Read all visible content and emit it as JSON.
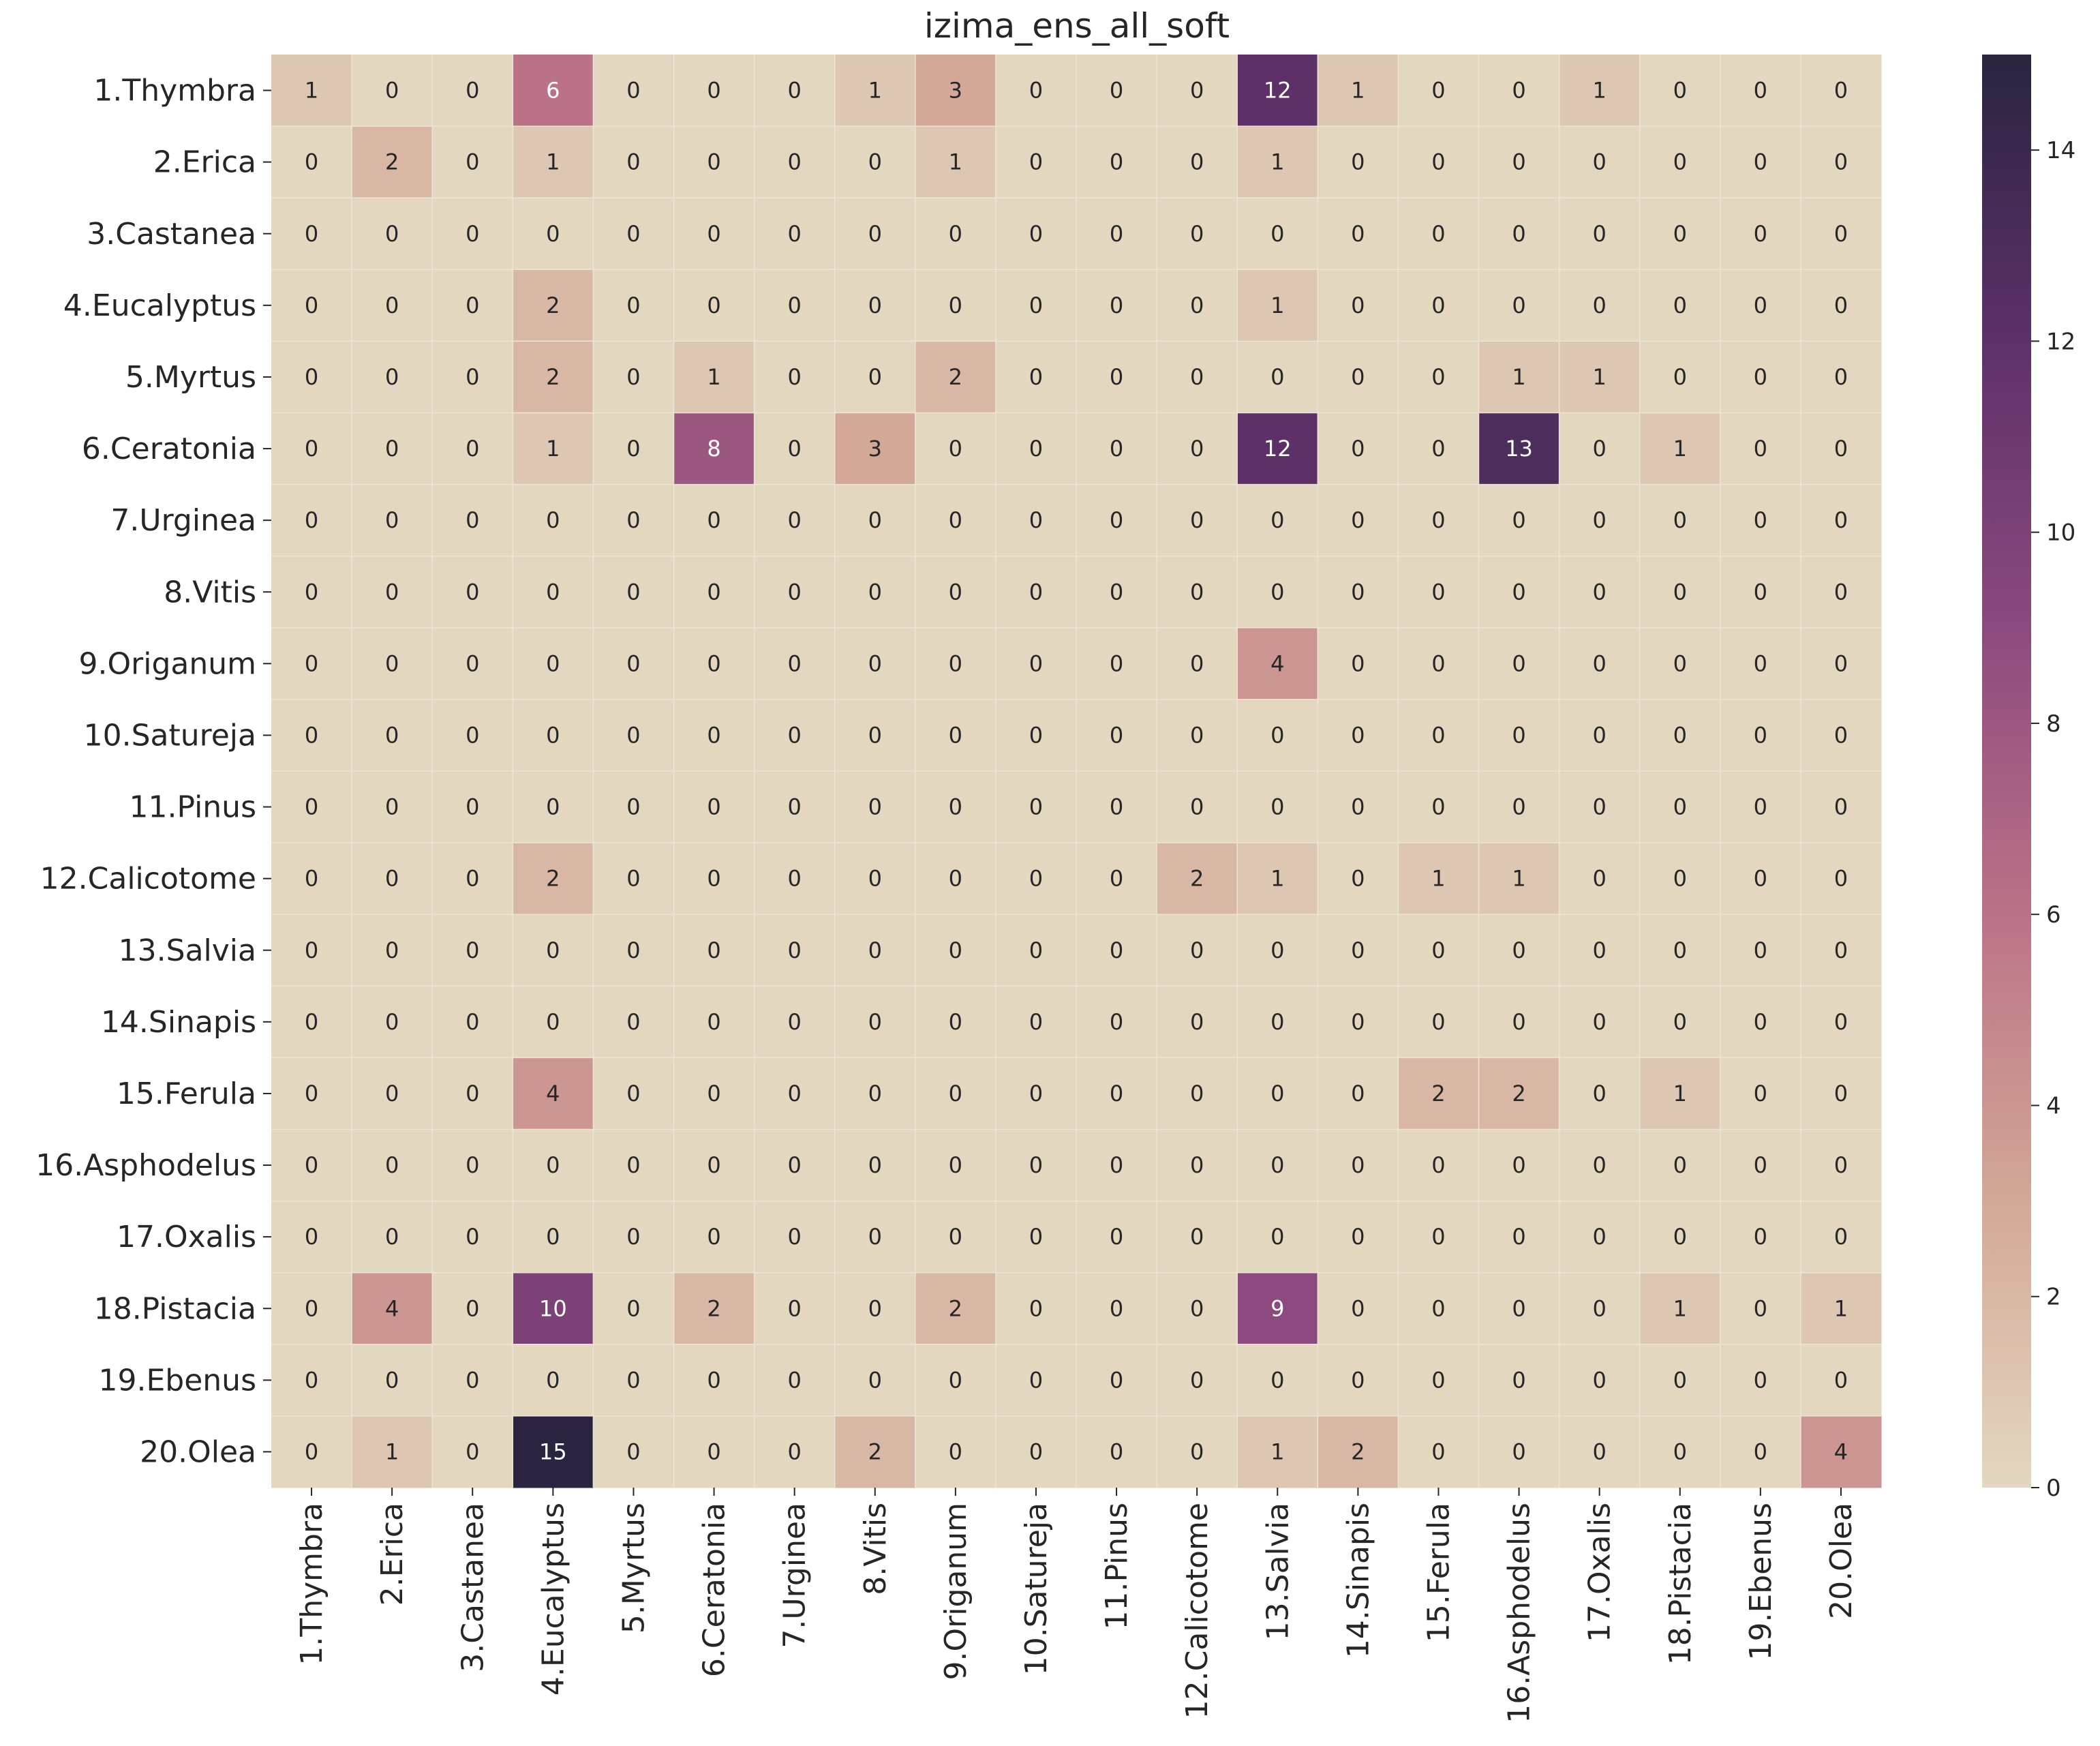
{
  "chart_data": {
    "type": "heatmap",
    "title": "izima_ens_all_soft",
    "xlabel": "",
    "ylabel": "",
    "row_labels": [
      "1.Thymbra",
      "2.Erica",
      "3.Castanea",
      "4.Eucalyptus",
      "5.Myrtus",
      "6.Ceratonia",
      "7.Urginea",
      "8.Vitis",
      "9.Origanum",
      "10.Satureja",
      "11.Pinus",
      "12.Calicotome",
      "13.Salvia",
      "14.Sinapis",
      "15.Ferula",
      "16.Asphodelus",
      "17.Oxalis",
      "18.Pistacia",
      "19.Ebenus",
      "20.Olea"
    ],
    "col_labels": [
      "1.Thymbra",
      "2.Erica",
      "3.Castanea",
      "4.Eucalyptus",
      "5.Myrtus",
      "6.Ceratonia",
      "7.Urginea",
      "8.Vitis",
      "9.Origanum",
      "10.Satureja",
      "11.Pinus",
      "12.Calicotome",
      "13.Salvia",
      "14.Sinapis",
      "15.Ferula",
      "16.Asphodelus",
      "17.Oxalis",
      "18.Pistacia",
      "19.Ebenus",
      "20.Olea"
    ],
    "values": [
      [
        1,
        0,
        0,
        6,
        0,
        0,
        0,
        1,
        3,
        0,
        0,
        0,
        12,
        1,
        0,
        0,
        1,
        0,
        0,
        0
      ],
      [
        0,
        2,
        0,
        1,
        0,
        0,
        0,
        0,
        1,
        0,
        0,
        0,
        1,
        0,
        0,
        0,
        0,
        0,
        0,
        0
      ],
      [
        0,
        0,
        0,
        0,
        0,
        0,
        0,
        0,
        0,
        0,
        0,
        0,
        0,
        0,
        0,
        0,
        0,
        0,
        0,
        0
      ],
      [
        0,
        0,
        0,
        2,
        0,
        0,
        0,
        0,
        0,
        0,
        0,
        0,
        1,
        0,
        0,
        0,
        0,
        0,
        0,
        0
      ],
      [
        0,
        0,
        0,
        2,
        0,
        1,
        0,
        0,
        2,
        0,
        0,
        0,
        0,
        0,
        0,
        1,
        1,
        0,
        0,
        0
      ],
      [
        0,
        0,
        0,
        1,
        0,
        8,
        0,
        3,
        0,
        0,
        0,
        0,
        12,
        0,
        0,
        13,
        0,
        1,
        0,
        0
      ],
      [
        0,
        0,
        0,
        0,
        0,
        0,
        0,
        0,
        0,
        0,
        0,
        0,
        0,
        0,
        0,
        0,
        0,
        0,
        0,
        0
      ],
      [
        0,
        0,
        0,
        0,
        0,
        0,
        0,
        0,
        0,
        0,
        0,
        0,
        0,
        0,
        0,
        0,
        0,
        0,
        0,
        0
      ],
      [
        0,
        0,
        0,
        0,
        0,
        0,
        0,
        0,
        0,
        0,
        0,
        0,
        4,
        0,
        0,
        0,
        0,
        0,
        0,
        0
      ],
      [
        0,
        0,
        0,
        0,
        0,
        0,
        0,
        0,
        0,
        0,
        0,
        0,
        0,
        0,
        0,
        0,
        0,
        0,
        0,
        0
      ],
      [
        0,
        0,
        0,
        0,
        0,
        0,
        0,
        0,
        0,
        0,
        0,
        0,
        0,
        0,
        0,
        0,
        0,
        0,
        0,
        0
      ],
      [
        0,
        0,
        0,
        2,
        0,
        0,
        0,
        0,
        0,
        0,
        0,
        2,
        1,
        0,
        1,
        1,
        0,
        0,
        0,
        0
      ],
      [
        0,
        0,
        0,
        0,
        0,
        0,
        0,
        0,
        0,
        0,
        0,
        0,
        0,
        0,
        0,
        0,
        0,
        0,
        0,
        0
      ],
      [
        0,
        0,
        0,
        0,
        0,
        0,
        0,
        0,
        0,
        0,
        0,
        0,
        0,
        0,
        0,
        0,
        0,
        0,
        0,
        0
      ],
      [
        0,
        0,
        0,
        4,
        0,
        0,
        0,
        0,
        0,
        0,
        0,
        0,
        0,
        0,
        2,
        2,
        0,
        1,
        0,
        0
      ],
      [
        0,
        0,
        0,
        0,
        0,
        0,
        0,
        0,
        0,
        0,
        0,
        0,
        0,
        0,
        0,
        0,
        0,
        0,
        0,
        0
      ],
      [
        0,
        0,
        0,
        0,
        0,
        0,
        0,
        0,
        0,
        0,
        0,
        0,
        0,
        0,
        0,
        0,
        0,
        0,
        0,
        0
      ],
      [
        0,
        4,
        0,
        10,
        0,
        2,
        0,
        0,
        2,
        0,
        0,
        0,
        9,
        0,
        0,
        0,
        0,
        1,
        0,
        1
      ],
      [
        0,
        0,
        0,
        0,
        0,
        0,
        0,
        0,
        0,
        0,
        0,
        0,
        0,
        0,
        0,
        0,
        0,
        0,
        0,
        0
      ],
      [
        0,
        1,
        0,
        15,
        0,
        0,
        0,
        2,
        0,
        0,
        0,
        0,
        1,
        2,
        0,
        0,
        0,
        0,
        0,
        4
      ]
    ],
    "vmin": 0,
    "vmax": 15,
    "colorbar_ticks": [
      0,
      2,
      4,
      6,
      8,
      10,
      12,
      14
    ],
    "colormap": [
      "#e3d7c0",
      "#d3a897",
      "#bb7287",
      "#8c4a7e",
      "#5d3168",
      "#2a2440"
    ],
    "grid": false,
    "legend": "colorbar-right"
  }
}
